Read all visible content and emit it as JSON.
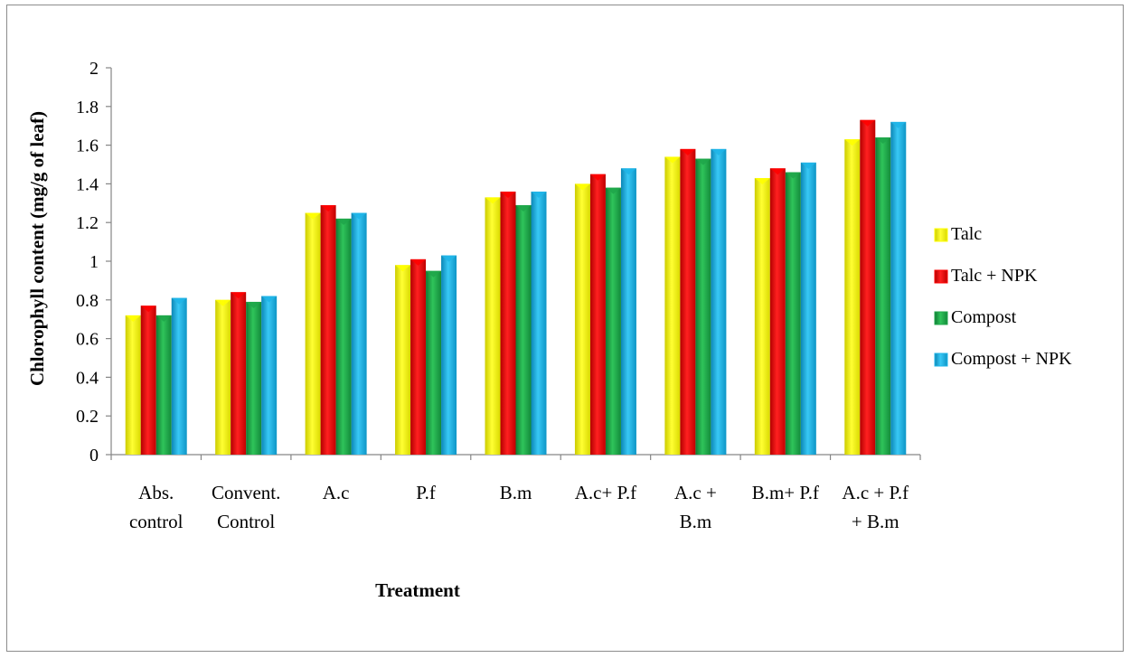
{
  "chart_data": {
    "type": "bar",
    "title": "",
    "xlabel": "Treatment",
    "ylabel": "Chlorophyll content (mg/g of leaf)",
    "ylim": [
      0,
      2
    ],
    "yticks": [
      "0",
      "0.2",
      "0.4",
      "0.6",
      "0.8",
      "1",
      "1.2",
      "1.4",
      "1.6",
      "1.8",
      "2"
    ],
    "categories": [
      [
        "Abs.",
        "control"
      ],
      [
        "Convent.",
        "Control"
      ],
      [
        "A.c"
      ],
      [
        "P.f"
      ],
      [
        "B.m"
      ],
      [
        "A.c+ P.f"
      ],
      [
        "A.c +",
        "B.m"
      ],
      [
        "B.m+ P.f"
      ],
      [
        "A.c + P.f",
        "+ B.m"
      ]
    ],
    "series": [
      {
        "name": "Talc",
        "color": "#ffff00",
        "values": [
          0.72,
          0.8,
          1.25,
          0.98,
          1.33,
          1.4,
          1.54,
          1.43,
          1.63
        ]
      },
      {
        "name": "Talc + NPK",
        "color": "#ff0000",
        "values": [
          0.77,
          0.84,
          1.29,
          1.01,
          1.36,
          1.45,
          1.58,
          1.48,
          1.73
        ]
      },
      {
        "name": "Compost",
        "color": "#1fa64a",
        "values": [
          0.72,
          0.79,
          1.22,
          0.95,
          1.29,
          1.38,
          1.53,
          1.46,
          1.64
        ]
      },
      {
        "name": "Compost + NPK",
        "color": "#1fb5e8",
        "values": [
          0.81,
          0.82,
          1.25,
          1.03,
          1.36,
          1.48,
          1.58,
          1.51,
          1.72
        ]
      }
    ],
    "grid": false,
    "legend_position": "right"
  }
}
